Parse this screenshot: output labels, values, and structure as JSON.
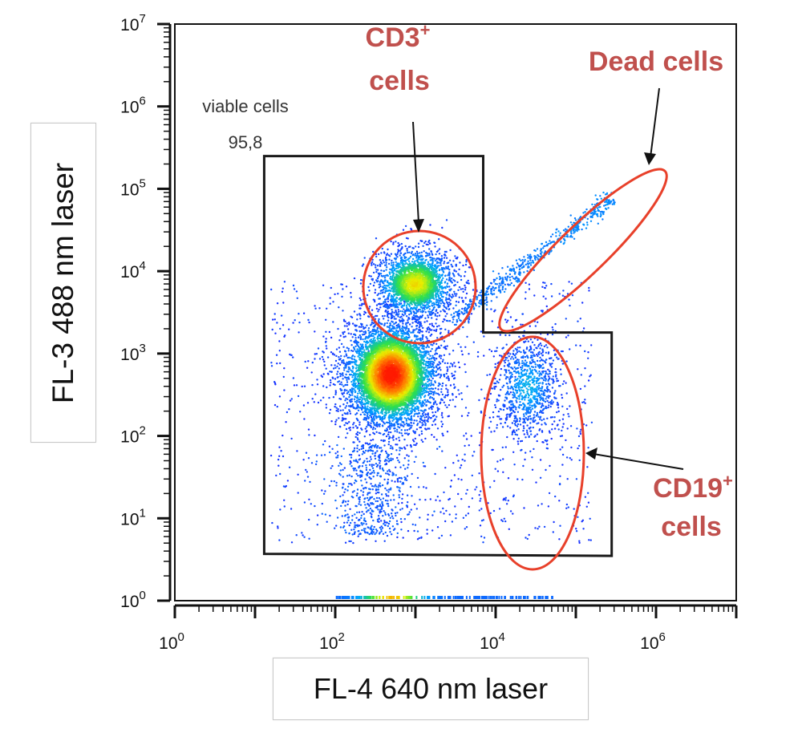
{
  "chart_data": {
    "type": "scatter",
    "subtype": "flow-cytometry-density-dot-plot",
    "xlabel": "FL-4 640 nm laser",
    "ylabel": "FL-3 488 nm laser",
    "x_scale": "log10",
    "y_scale": "log10",
    "xlim": [
      1,
      10000000
    ],
    "ylim": [
      1,
      10000000
    ],
    "x_tick_labels": [
      {
        "value": 1,
        "base": "10",
        "exp": "0"
      },
      {
        "value": 100,
        "base": "10",
        "exp": "2"
      },
      {
        "value": 10000,
        "base": "10",
        "exp": "4"
      },
      {
        "value": 1000000,
        "base": "10",
        "exp": "6"
      }
    ],
    "y_tick_labels": [
      {
        "value": 1,
        "base": "10",
        "exp": "0"
      },
      {
        "value": 10,
        "base": "10",
        "exp": "1"
      },
      {
        "value": 100,
        "base": "10",
        "exp": "2"
      },
      {
        "value": 1000,
        "base": "10",
        "exp": "3"
      },
      {
        "value": 10000,
        "base": "10",
        "exp": "4"
      },
      {
        "value": 100000,
        "base": "10",
        "exp": "5"
      },
      {
        "value": 1000000,
        "base": "10",
        "exp": "6"
      },
      {
        "value": 10000000,
        "base": "10",
        "exp": "7"
      }
    ],
    "populations": [
      {
        "name": "Main lymphocyte cluster",
        "center": [
          500,
          550
        ],
        "sd_log": [
          0.3,
          0.33
        ],
        "weight": 0.52,
        "peak_density": "high"
      },
      {
        "name": "CD3+ cluster",
        "center": [
          1000,
          7000
        ],
        "sd_log": [
          0.26,
          0.22
        ],
        "weight": 0.2,
        "peak_density": "medium"
      },
      {
        "name": "CD19+ cluster",
        "center": [
          25000,
          400
        ],
        "sd_log": [
          0.2,
          0.3
        ],
        "weight": 0.1,
        "peak_density": "low"
      },
      {
        "name": "Dead cell streak",
        "from": [
          3000,
          2500
        ],
        "to": [
          300000,
          80000
        ],
        "weight": 0.06,
        "peak_density": "low"
      }
    ],
    "gate": {
      "label": "viable cells",
      "value": "95,8",
      "vertices": [
        [
          13,
          250000
        ],
        [
          7000,
          250000
        ],
        [
          7000,
          1800
        ],
        [
          280000,
          1800
        ],
        [
          280000,
          3.5
        ],
        [
          13,
          3.7
        ]
      ]
    },
    "annotations": [
      {
        "id": "cd3",
        "line1": "CD3",
        "sup": "+",
        "line2": "cells",
        "color": "#c0504d",
        "ellipse_color": "#e8402a"
      },
      {
        "id": "dead",
        "text": "Dead cells",
        "color": "#c0504d",
        "ellipse_color": "#e8402a"
      },
      {
        "id": "cd19",
        "line1": "CD19",
        "sup": "+",
        "line2": "cells",
        "color": "#c0504d",
        "ellipse_color": "#e8402a"
      }
    ],
    "colormap": [
      "#1a2cff",
      "#00a8ff",
      "#2ee04a",
      "#e8f000",
      "#ff8000",
      "#ff1a00"
    ],
    "grid": false,
    "legend": "none"
  }
}
